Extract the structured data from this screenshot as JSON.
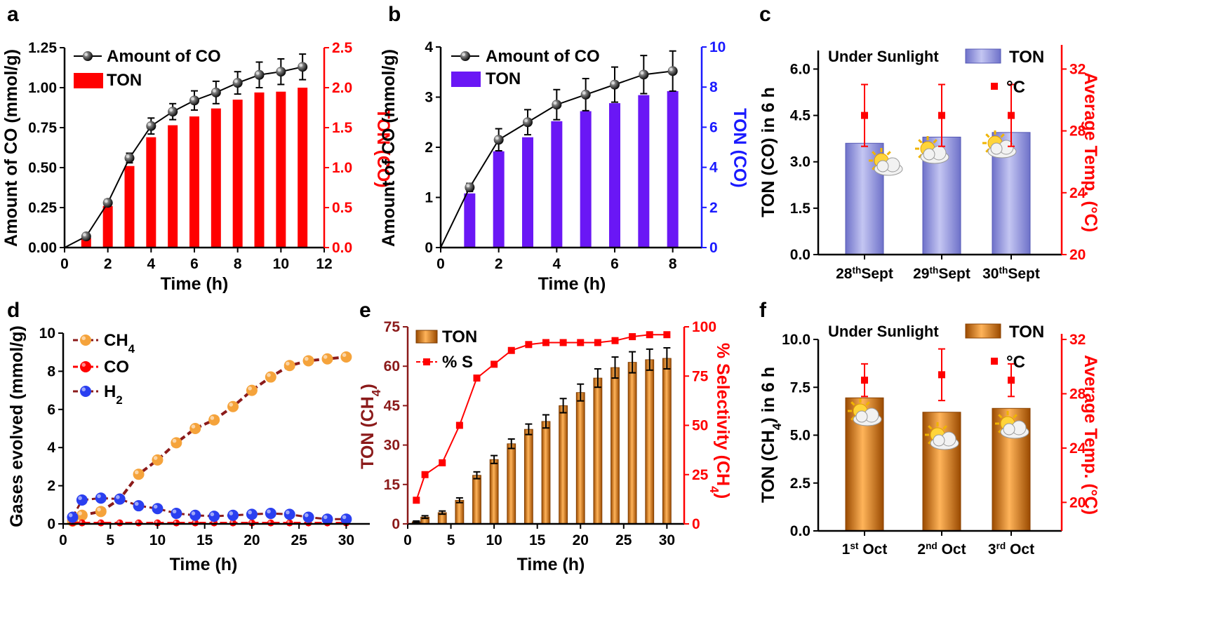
{
  "colors": {
    "black": "#000000",
    "red": "#ff0000",
    "blue": "#1a1aff",
    "purple_bar": "#6a17f5",
    "lavender_bar": "#a6a8e6",
    "orange_bar": "#e07a10",
    "dark_red": "#8b1a1a",
    "orange_dot": "#f5a33b",
    "blue_dot": "#2a3ff0"
  },
  "chart_data": [
    {
      "panel": "a",
      "type": "bar+line",
      "xlabel": "Time (h)",
      "ylabel_left": "Amount of CO (mmol/g)",
      "ylabel_right": "TON (CO)",
      "xlim": [
        0,
        12
      ],
      "xticks": [
        "0",
        "2",
        "4",
        "6",
        "8",
        "10",
        "12"
      ],
      "ylim_left": [
        0,
        1.25
      ],
      "yticks_left": [
        "0.00",
        "0.25",
        "0.50",
        "0.75",
        "1.00",
        "1.25"
      ],
      "ylim_right": [
        0,
        2.5
      ],
      "yticks_right": [
        "0.0",
        "0.5",
        "1.0",
        "1.5",
        "2.0",
        "2.5"
      ],
      "line": {
        "name": "Amount of CO",
        "x": [
          0,
          1,
          2,
          3,
          4,
          5,
          6,
          7,
          8,
          9,
          10,
          11
        ],
        "y": [
          0,
          0.07,
          0.28,
          0.56,
          0.76,
          0.85,
          0.92,
          0.97,
          1.03,
          1.08,
          1.1,
          1.13
        ],
        "err": [
          0,
          0.01,
          0.02,
          0.03,
          0.05,
          0.05,
          0.06,
          0.07,
          0.07,
          0.08,
          0.08,
          0.08
        ]
      },
      "bars": {
        "name": "TON",
        "x": [
          1,
          2,
          3,
          4,
          5,
          6,
          7,
          8,
          9,
          10,
          11
        ],
        "values": [
          0.12,
          0.52,
          1.02,
          1.38,
          1.53,
          1.64,
          1.74,
          1.85,
          1.94,
          1.95,
          2.0
        ]
      },
      "legend": [
        "Amount of CO",
        "TON"
      ]
    },
    {
      "panel": "b",
      "type": "bar+line",
      "xlabel": "Time (h)",
      "ylabel_left": "Amount of CO (mmol/g)",
      "ylabel_right": "TON (CO)",
      "xlim": [
        0,
        9
      ],
      "xticks": [
        "0",
        "2",
        "4",
        "6",
        "8"
      ],
      "ylim_left": [
        0,
        4
      ],
      "yticks_left": [
        "0",
        "1",
        "2",
        "3",
        "4"
      ],
      "ylim_right": [
        0,
        10
      ],
      "yticks_right": [
        "0",
        "2",
        "4",
        "6",
        "8",
        "10"
      ],
      "line": {
        "name": "Amount of CO",
        "x": [
          0,
          1,
          2,
          3,
          4,
          5,
          6,
          7,
          8
        ],
        "y": [
          0,
          1.2,
          2.15,
          2.5,
          2.85,
          3.05,
          3.25,
          3.45,
          3.52
        ],
        "err": [
          0,
          0.08,
          0.22,
          0.25,
          0.3,
          0.32,
          0.35,
          0.38,
          0.4
        ]
      },
      "bars": {
        "name": "TON",
        "x": [
          1,
          2,
          3,
          4,
          5,
          6,
          7,
          8
        ],
        "values": [
          2.7,
          4.8,
          5.5,
          6.3,
          6.8,
          7.2,
          7.6,
          7.8
        ]
      },
      "legend": [
        "Amount of CO",
        "TON"
      ]
    },
    {
      "panel": "c",
      "type": "bar",
      "ylabel_left": "TON (CO) in 6 h",
      "ylabel_right": "Average Temp. (°C)",
      "categories": [
        "28thSept",
        "29thSept",
        "30thSept"
      ],
      "category_parts": [
        [
          "28",
          "th",
          "Sept"
        ],
        [
          "29",
          "th",
          "Sept"
        ],
        [
          "30",
          "th",
          "Sept"
        ]
      ],
      "ylim_left": [
        0,
        6.6
      ],
      "yticks_left": [
        "0.0",
        "1.5",
        "3.0",
        "4.5",
        "6.0"
      ],
      "ylim_right": [
        20,
        33.2
      ],
      "yticks_right": [
        "20",
        "24",
        "28",
        "32"
      ],
      "bars": {
        "name": "TON",
        "values": [
          3.6,
          3.8,
          3.95
        ]
      },
      "temps": {
        "name": "°C",
        "values": [
          29,
          29,
          29
        ],
        "err": [
          2,
          2,
          2
        ]
      },
      "note": "Under Sunlight",
      "legend": [
        "TON",
        "°C"
      ]
    },
    {
      "panel": "d",
      "type": "line",
      "xlabel": "Time (h)",
      "ylabel": "Gases evolved (mmol/g)",
      "xlim": [
        0,
        32.5
      ],
      "xticks": [
        "0",
        "5",
        "10",
        "15",
        "20",
        "25",
        "30"
      ],
      "ylim": [
        0,
        10
      ],
      "yticks": [
        "0",
        "2",
        "4",
        "6",
        "8",
        "10"
      ],
      "series": [
        {
          "name": "CH4",
          "x": [
            1,
            2,
            4,
            6,
            8,
            10,
            12,
            14,
            16,
            18,
            20,
            22,
            24,
            26,
            28,
            30
          ],
          "values": [
            0.15,
            0.45,
            0.65,
            1.3,
            2.6,
            3.35,
            4.25,
            5.0,
            5.45,
            6.15,
            7.0,
            7.7,
            8.3,
            8.55,
            8.65,
            8.75
          ]
        },
        {
          "name": "CO",
          "x": [
            1,
            2,
            4,
            6,
            8,
            10,
            12,
            14,
            16,
            18,
            20,
            22,
            24,
            26,
            28,
            30
          ],
          "values": [
            0.05,
            0.05,
            0.05,
            0.05,
            0.05,
            0.05,
            0.05,
            0.05,
            0.05,
            0.05,
            0.05,
            0.05,
            0.05,
            0.05,
            0.05,
            0.05
          ]
        },
        {
          "name": "H2",
          "x": [
            1,
            2,
            4,
            6,
            8,
            10,
            12,
            14,
            16,
            18,
            20,
            22,
            24,
            26,
            28,
            30
          ],
          "values": [
            0.35,
            1.25,
            1.35,
            1.3,
            0.95,
            0.8,
            0.55,
            0.45,
            0.4,
            0.45,
            0.5,
            0.55,
            0.5,
            0.35,
            0.25,
            0.25
          ]
        }
      ],
      "legend": [
        "CH4",
        "CO",
        "H2"
      ]
    },
    {
      "panel": "e",
      "type": "bar+line",
      "xlabel": "Time (h)",
      "ylabel_left": "TON (CH4)",
      "ylabel_right": "% Selectivity (CH4)",
      "xlim": [
        0,
        32
      ],
      "xticks": [
        "0",
        "5",
        "10",
        "15",
        "20",
        "25",
        "30"
      ],
      "ylim_left": [
        0,
        75
      ],
      "yticks_left": [
        "0",
        "15",
        "30",
        "45",
        "60",
        "75"
      ],
      "ylim_right": [
        0,
        100
      ],
      "yticks_right": [
        "0",
        "25",
        "50",
        "75",
        "100"
      ],
      "bars": {
        "name": "TON",
        "x": [
          1,
          2,
          4,
          6,
          8,
          10,
          12,
          14,
          16,
          18,
          20,
          22,
          24,
          26,
          28,
          30
        ],
        "values": [
          0.8,
          2.6,
          4.3,
          9.0,
          18.5,
          24.5,
          30.5,
          36.0,
          39.0,
          45.0,
          50.0,
          55.5,
          59.5,
          61.5,
          62.5,
          63.0
        ],
        "err": [
          0.3,
          0.5,
          0.6,
          0.9,
          1.3,
          1.5,
          1.8,
          2.0,
          2.5,
          2.7,
          3.2,
          3.5,
          4.0,
          4.0,
          4.0,
          4.0
        ]
      },
      "line": {
        "name": "% S",
        "x": [
          1,
          2,
          4,
          6,
          8,
          10,
          12,
          14,
          16,
          18,
          20,
          22,
          24,
          26,
          28,
          30
        ],
        "values": [
          12,
          25,
          31,
          50,
          74,
          81,
          88,
          91,
          92,
          92,
          92,
          92,
          93,
          95,
          96,
          96
        ]
      },
      "legend": [
        "TON",
        "% S"
      ]
    },
    {
      "panel": "f",
      "type": "bar",
      "ylabel_left": "TON (CH4) in 6 h",
      "ylabel_right": "Average Temp. (°C)",
      "categories": [
        "1st Oct",
        "2nd Oct",
        "3rd Oct"
      ],
      "category_parts": [
        [
          "1",
          "st",
          " Oct"
        ],
        [
          "2",
          "nd",
          " Oct"
        ],
        [
          "3",
          "rd",
          " Oct"
        ]
      ],
      "ylim_left": [
        0,
        10
      ],
      "yticks_left": [
        "0.0",
        "2.5",
        "5.0",
        "7.5",
        "10.0"
      ],
      "ylim_right": [
        17.9,
        32
      ],
      "yticks_right": [
        "20",
        "24",
        "28",
        "32"
      ],
      "bars": {
        "name": "TON",
        "values": [
          6.95,
          6.2,
          6.4
        ]
      },
      "temps": {
        "name": "°C",
        "values": [
          29,
          29.4,
          29
        ],
        "err": [
          1.2,
          1.9,
          1.2
        ]
      },
      "note": "Under Sunlight",
      "legend": [
        "TON",
        "°C"
      ]
    }
  ],
  "panel_letters": [
    "a",
    "b",
    "c",
    "d",
    "e",
    "f"
  ]
}
